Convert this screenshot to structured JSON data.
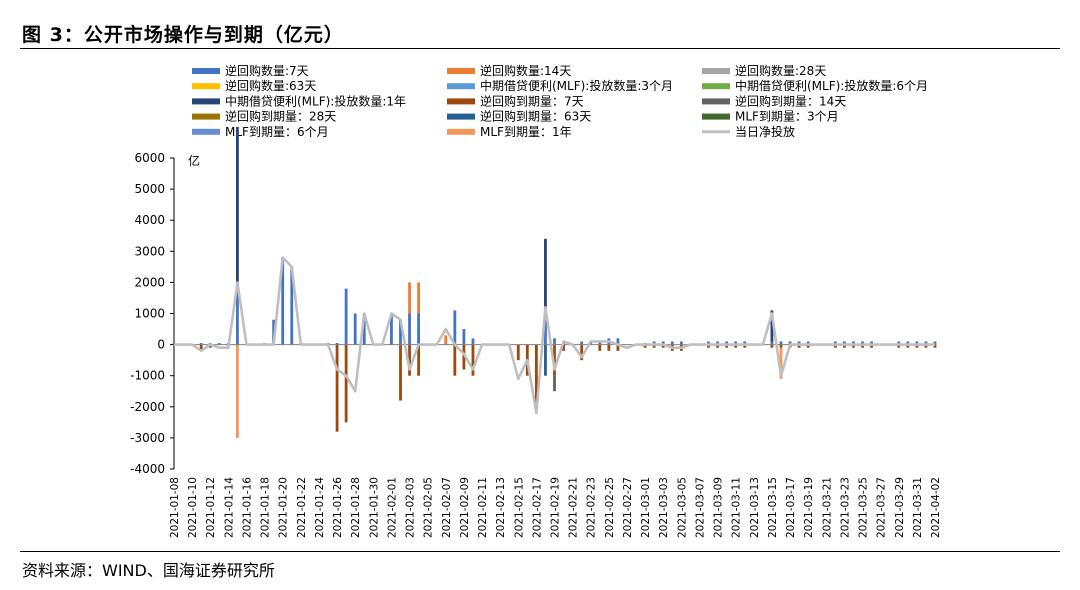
{
  "figure": {
    "title": "图 3：公开市场操作与到期（亿元）",
    "source": "资料来源：WIND、国海证券研究所"
  },
  "chart_data": {
    "type": "bar",
    "ylabel": "亿",
    "ylim": [
      -4000,
      6000
    ],
    "yticks": [
      -4000,
      -3000,
      -2000,
      -1000,
      0,
      1000,
      2000,
      3000,
      4000,
      5000,
      6000
    ],
    "legend_position": "top",
    "grid": false,
    "x": [
      "2021-01-08",
      "2021-01-09",
      "2021-01-10",
      "2021-01-11",
      "2021-01-12",
      "2021-01-13",
      "2021-01-14",
      "2021-01-15",
      "2021-01-16",
      "2021-01-17",
      "2021-01-18",
      "2021-01-19",
      "2021-01-20",
      "2021-01-21",
      "2021-01-22",
      "2021-01-23",
      "2021-01-24",
      "2021-01-25",
      "2021-01-26",
      "2021-01-27",
      "2021-01-28",
      "2021-01-29",
      "2021-01-30",
      "2021-01-31",
      "2021-02-01",
      "2021-02-02",
      "2021-02-03",
      "2021-02-04",
      "2021-02-05",
      "2021-02-06",
      "2021-02-07",
      "2021-02-08",
      "2021-02-09",
      "2021-02-10",
      "2021-02-11",
      "2021-02-12",
      "2021-02-13",
      "2021-02-14",
      "2021-02-15",
      "2021-02-16",
      "2021-02-17",
      "2021-02-18",
      "2021-02-19",
      "2021-02-20",
      "2021-02-21",
      "2021-02-22",
      "2021-02-23",
      "2021-02-24",
      "2021-02-25",
      "2021-02-26",
      "2021-02-27",
      "2021-02-28",
      "2021-03-01",
      "2021-03-02",
      "2021-03-03",
      "2021-03-04",
      "2021-03-05",
      "2021-03-06",
      "2021-03-07",
      "2021-03-08",
      "2021-03-09",
      "2021-03-10",
      "2021-03-11",
      "2021-03-12",
      "2021-03-13",
      "2021-03-14",
      "2021-03-15",
      "2021-03-16",
      "2021-03-17",
      "2021-03-18",
      "2021-03-19",
      "2021-03-20",
      "2021-03-21",
      "2021-03-22",
      "2021-03-23",
      "2021-03-24",
      "2021-03-25",
      "2021-03-26",
      "2021-03-27",
      "2021-03-28",
      "2021-03-29",
      "2021-03-30",
      "2021-03-31",
      "2021-04-01",
      "2021-04-02"
    ],
    "x_tick_labels": [
      "2021-01-08",
      "2021-01-10",
      "2021-01-12",
      "2021-01-14",
      "2021-01-16",
      "2021-01-18",
      "2021-01-20",
      "2021-01-22",
      "2021-01-24",
      "2021-01-26",
      "2021-01-28",
      "2021-01-30",
      "2021-02-01",
      "2021-02-03",
      "2021-02-05",
      "2021-02-07",
      "2021-02-09",
      "2021-02-11",
      "2021-02-13",
      "2021-02-15",
      "2021-02-17",
      "2021-02-19",
      "2021-02-21",
      "2021-02-23",
      "2021-02-25",
      "2021-02-27",
      "2021-03-01",
      "2021-03-03",
      "2021-03-05",
      "2021-03-07",
      "2021-03-09",
      "2021-03-11",
      "2021-03-13",
      "2021-03-15",
      "2021-03-17",
      "2021-03-19",
      "2021-03-21",
      "2021-03-23",
      "2021-03-25",
      "2021-03-27",
      "2021-03-29",
      "2021-03-31",
      "2021-04-02"
    ],
    "series": [
      {
        "name": "逆回购数量:7天",
        "kind": "bar",
        "color": "#4472C4",
        "points": [
          [
            "2021-01-08",
            50
          ],
          [
            "2021-01-11",
            50
          ],
          [
            "2021-01-12",
            50
          ],
          [
            "2021-01-13",
            50
          ],
          [
            "2021-01-14",
            50
          ],
          [
            "2021-01-15",
            2000
          ],
          [
            "2021-01-18",
            50
          ],
          [
            "2021-01-19",
            800
          ],
          [
            "2021-01-20",
            2800
          ],
          [
            "2021-01-21",
            2500
          ],
          [
            "2021-01-22",
            50
          ],
          [
            "2021-01-25",
            50
          ],
          [
            "2021-01-26",
            50
          ],
          [
            "2021-01-27",
            1800
          ],
          [
            "2021-01-28",
            1000
          ],
          [
            "2021-01-29",
            1000
          ],
          [
            "2021-02-01",
            1000
          ],
          [
            "2021-02-02",
            800
          ],
          [
            "2021-02-03",
            1000
          ],
          [
            "2021-02-04",
            1000
          ],
          [
            "2021-02-08",
            1100
          ],
          [
            "2021-02-09",
            500
          ],
          [
            "2021-02-10",
            200
          ],
          [
            "2021-02-18",
            1200
          ],
          [
            "2021-02-19",
            200
          ],
          [
            "2021-02-20",
            100
          ],
          [
            "2021-02-22",
            100
          ],
          [
            "2021-02-23",
            100
          ],
          [
            "2021-02-24",
            100
          ],
          [
            "2021-02-25",
            200
          ],
          [
            "2021-02-26",
            200
          ],
          [
            "2021-03-01",
            50
          ],
          [
            "2021-03-02",
            100
          ],
          [
            "2021-03-03",
            100
          ],
          [
            "2021-03-04",
            100
          ],
          [
            "2021-03-05",
            100
          ],
          [
            "2021-03-08",
            100
          ],
          [
            "2021-03-09",
            100
          ],
          [
            "2021-03-10",
            100
          ],
          [
            "2021-03-11",
            100
          ],
          [
            "2021-03-12",
            100
          ],
          [
            "2021-03-15",
            100
          ],
          [
            "2021-03-16",
            100
          ],
          [
            "2021-03-17",
            100
          ],
          [
            "2021-03-18",
            100
          ],
          [
            "2021-03-19",
            100
          ],
          [
            "2021-03-22",
            100
          ],
          [
            "2021-03-23",
            100
          ],
          [
            "2021-03-24",
            100
          ],
          [
            "2021-03-25",
            100
          ],
          [
            "2021-03-26",
            100
          ],
          [
            "2021-03-29",
            100
          ],
          [
            "2021-03-30",
            100
          ],
          [
            "2021-03-31",
            100
          ],
          [
            "2021-04-01",
            100
          ],
          [
            "2021-04-02",
            100
          ]
        ]
      },
      {
        "name": "逆回购数量:14天",
        "kind": "bar",
        "color": "#ED7D31",
        "points": [
          [
            "2021-02-03",
            1000
          ],
          [
            "2021-02-04",
            1000
          ],
          [
            "2021-02-07",
            300
          ]
        ]
      },
      {
        "name": "逆回购数量:28天",
        "kind": "bar",
        "color": "#A5A5A5",
        "points": []
      },
      {
        "name": "逆回购数量:63天",
        "kind": "bar",
        "color": "#FFC000",
        "points": []
      },
      {
        "name": "中期借贷便利(MLF):投放数量:3个月",
        "kind": "bar",
        "color": "#5B9BD5",
        "points": []
      },
      {
        "name": "中期借贷便利(MLF):投放数量:6个月",
        "kind": "bar",
        "color": "#70AD47",
        "points": []
      },
      {
        "name": "中期借贷便利(MLF):投放数量:1年",
        "kind": "bar",
        "color": "#264478",
        "points": [
          [
            "2021-01-15",
            5000
          ],
          [
            "2021-02-18",
            2200
          ],
          [
            "2021-03-15",
            1000
          ]
        ]
      },
      {
        "name": "逆回购到期量：7天",
        "kind": "bar",
        "color": "#9E480E",
        "points": [
          [
            "2021-01-11",
            -200
          ],
          [
            "2021-01-12",
            -100
          ],
          [
            "2021-01-26",
            -2800
          ],
          [
            "2021-01-27",
            -2500
          ],
          [
            "2021-02-02",
            -1800
          ],
          [
            "2021-02-03",
            -1000
          ],
          [
            "2021-02-04",
            -1000
          ],
          [
            "2021-02-08",
            -1000
          ],
          [
            "2021-02-09",
            -800
          ],
          [
            "2021-02-10",
            -1000
          ],
          [
            "2021-02-15",
            -500
          ],
          [
            "2021-02-16",
            -1000
          ],
          [
            "2021-02-17",
            -2000
          ],
          [
            "2021-02-19",
            -1000
          ],
          [
            "2021-02-20",
            -200
          ],
          [
            "2021-02-22",
            -500
          ],
          [
            "2021-02-24",
            -200
          ],
          [
            "2021-02-25",
            -200
          ],
          [
            "2021-02-26",
            -200
          ],
          [
            "2021-03-01",
            -100
          ],
          [
            "2021-03-02",
            -100
          ],
          [
            "2021-03-03",
            -100
          ],
          [
            "2021-03-04",
            -200
          ],
          [
            "2021-03-05",
            -200
          ],
          [
            "2021-03-08",
            -100
          ],
          [
            "2021-03-09",
            -100
          ],
          [
            "2021-03-10",
            -100
          ],
          [
            "2021-03-11",
            -100
          ],
          [
            "2021-03-12",
            -100
          ],
          [
            "2021-03-15",
            -100
          ],
          [
            "2021-03-16",
            -100
          ],
          [
            "2021-03-17",
            -100
          ],
          [
            "2021-03-18",
            -100
          ],
          [
            "2021-03-19",
            -100
          ],
          [
            "2021-03-22",
            -100
          ],
          [
            "2021-03-23",
            -100
          ],
          [
            "2021-03-24",
            -100
          ],
          [
            "2021-03-25",
            -100
          ],
          [
            "2021-03-26",
            -100
          ],
          [
            "2021-03-29",
            -100
          ],
          [
            "2021-03-30",
            -100
          ],
          [
            "2021-03-31",
            -100
          ],
          [
            "2021-04-01",
            -100
          ],
          [
            "2021-04-02",
            -100
          ]
        ]
      },
      {
        "name": "逆回购到期量：14天",
        "kind": "bar",
        "color": "#636363",
        "points": [
          [
            "2021-02-19",
            -500
          ]
        ]
      },
      {
        "name": "逆回购到期量：28天",
        "kind": "bar",
        "color": "#997300",
        "points": []
      },
      {
        "name": "逆回购到期量：63天",
        "kind": "bar",
        "color": "#255E91",
        "points": [
          [
            "2021-02-18",
            -1000
          ]
        ]
      },
      {
        "name": "MLF到期量：3个月",
        "kind": "bar",
        "color": "#43682B",
        "points": []
      },
      {
        "name": "MLF到期量：6个月",
        "kind": "bar",
        "color": "#698ED0",
        "points": []
      },
      {
        "name": "MLF到期量：1年",
        "kind": "bar",
        "color": "#F1975A",
        "points": [
          [
            "2021-01-15",
            -3000
          ],
          [
            "2021-03-16",
            -1000
          ]
        ]
      },
      {
        "name": "当日净投放",
        "kind": "line",
        "color": "#BFBFBF",
        "points": [
          [
            "2021-01-08",
            0
          ],
          [
            "2021-01-09",
            0
          ],
          [
            "2021-01-10",
            0
          ],
          [
            "2021-01-11",
            -200
          ],
          [
            "2021-01-12",
            0
          ],
          [
            "2021-01-13",
            -100
          ],
          [
            "2021-01-14",
            -100
          ],
          [
            "2021-01-15",
            2000
          ],
          [
            "2021-01-16",
            0
          ],
          [
            "2021-01-17",
            0
          ],
          [
            "2021-01-18",
            0
          ],
          [
            "2021-01-19",
            0
          ],
          [
            "2021-01-20",
            2800
          ],
          [
            "2021-01-21",
            2500
          ],
          [
            "2021-01-22",
            0
          ],
          [
            "2021-01-23",
            0
          ],
          [
            "2021-01-24",
            0
          ],
          [
            "2021-01-25",
            0
          ],
          [
            "2021-01-26",
            -800
          ],
          [
            "2021-01-27",
            -1000
          ],
          [
            "2021-01-28",
            -1500
          ],
          [
            "2021-01-29",
            1000
          ],
          [
            "2021-01-30",
            0
          ],
          [
            "2021-01-31",
            0
          ],
          [
            "2021-02-01",
            1000
          ],
          [
            "2021-02-02",
            800
          ],
          [
            "2021-02-03",
            -800
          ],
          [
            "2021-02-04",
            0
          ],
          [
            "2021-02-05",
            0
          ],
          [
            "2021-02-06",
            0
          ],
          [
            "2021-02-07",
            500
          ],
          [
            "2021-02-08",
            0
          ],
          [
            "2021-02-09",
            -300
          ],
          [
            "2021-02-10",
            -800
          ],
          [
            "2021-02-11",
            0
          ],
          [
            "2021-02-12",
            0
          ],
          [
            "2021-02-13",
            0
          ],
          [
            "2021-02-14",
            0
          ],
          [
            "2021-02-15",
            -1100
          ],
          [
            "2021-02-16",
            -500
          ],
          [
            "2021-02-17",
            -2200
          ],
          [
            "2021-02-18",
            1200
          ],
          [
            "2021-02-19",
            -800
          ],
          [
            "2021-02-20",
            100
          ],
          [
            "2021-02-21",
            0
          ],
          [
            "2021-02-22",
            -400
          ],
          [
            "2021-02-23",
            100
          ],
          [
            "2021-02-24",
            100
          ],
          [
            "2021-02-25",
            100
          ],
          [
            "2021-02-26",
            0
          ],
          [
            "2021-02-27",
            -100
          ],
          [
            "2021-02-28",
            0
          ],
          [
            "2021-03-01",
            0
          ],
          [
            "2021-03-02",
            0
          ],
          [
            "2021-03-03",
            0
          ],
          [
            "2021-03-04",
            -100
          ],
          [
            "2021-03-05",
            -100
          ],
          [
            "2021-03-06",
            0
          ],
          [
            "2021-03-07",
            0
          ],
          [
            "2021-03-08",
            0
          ],
          [
            "2021-03-09",
            0
          ],
          [
            "2021-03-10",
            0
          ],
          [
            "2021-03-11",
            0
          ],
          [
            "2021-03-12",
            0
          ],
          [
            "2021-03-13",
            0
          ],
          [
            "2021-03-14",
            0
          ],
          [
            "2021-03-15",
            1000
          ],
          [
            "2021-03-16",
            -1000
          ],
          [
            "2021-03-17",
            0
          ],
          [
            "2021-03-18",
            0
          ],
          [
            "2021-03-19",
            0
          ],
          [
            "2021-03-20",
            0
          ],
          [
            "2021-03-21",
            0
          ],
          [
            "2021-03-22",
            0
          ],
          [
            "2021-03-23",
            0
          ],
          [
            "2021-03-24",
            0
          ],
          [
            "2021-03-25",
            0
          ],
          [
            "2021-03-26",
            0
          ],
          [
            "2021-03-27",
            0
          ],
          [
            "2021-03-28",
            0
          ],
          [
            "2021-03-29",
            0
          ],
          [
            "2021-03-30",
            0
          ],
          [
            "2021-03-31",
            0
          ],
          [
            "2021-04-01",
            0
          ],
          [
            "2021-04-02",
            0
          ]
        ]
      }
    ]
  }
}
